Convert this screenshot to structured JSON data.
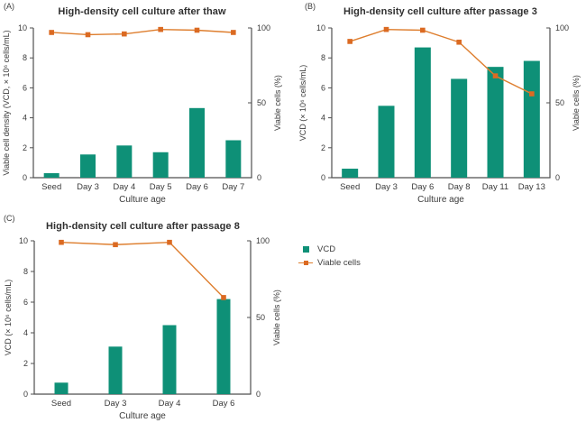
{
  "figure": {
    "colors": {
      "bar": "#0e9077",
      "line": "#de7e2e",
      "marker": "#db6a22",
      "axis": "#4f4f4f",
      "text": "#3a3a3a"
    },
    "legend": {
      "items": [
        {
          "label": "VCD",
          "type": "bar",
          "color": "#0e9077"
        },
        {
          "label": "Viable cells",
          "type": "line",
          "color": "#db6a22",
          "line_color": "#de7e2e"
        }
      ]
    }
  },
  "chart_data": [
    {
      "panel_label": "(A)",
      "type": "bar+line",
      "title": "High-density cell culture after thaw",
      "categories": [
        "Seed",
        "Day 3",
        "Day 4",
        "Day 5",
        "Day 6",
        "Day 7"
      ],
      "series": [
        {
          "name": "VCD",
          "type": "bar",
          "axis": "left",
          "values": [
            0.3,
            1.55,
            2.15,
            1.7,
            4.65,
            2.5
          ]
        },
        {
          "name": "Viable cells",
          "type": "line",
          "axis": "right",
          "values": [
            97,
            95.5,
            96,
            99,
            98.5,
            97
          ]
        }
      ],
      "xlabel": "Culture age",
      "ylabel_left": "Viable cell density (VCD, × 10⁶ cells/mL)",
      "ylabel_right": "Viable cells (%)",
      "ylim_left": [
        0,
        10
      ],
      "ylim_right": [
        0,
        100
      ],
      "yticks_left": [
        0,
        2,
        4,
        6,
        8,
        10
      ],
      "yticks_right": [
        0,
        50,
        100
      ]
    },
    {
      "panel_label": "(B)",
      "type": "bar+line",
      "title": "High-density cell culture after passage 3",
      "categories": [
        "Seed",
        "Day 3",
        "Day 6",
        "Day 8",
        "Day 11",
        "Day 13"
      ],
      "series": [
        {
          "name": "VCD",
          "type": "bar",
          "axis": "left",
          "values": [
            0.6,
            4.8,
            8.7,
            6.6,
            7.4,
            7.8
          ]
        },
        {
          "name": "Viable cells",
          "type": "line",
          "axis": "right",
          "values": [
            91,
            99,
            98.5,
            90.5,
            68,
            56
          ]
        }
      ],
      "xlabel": "Culture age",
      "ylabel_left": "VCD (× 10⁶ cells/mL)",
      "ylabel_right": "Viable cells (%)",
      "ylim_left": [
        0,
        10
      ],
      "ylim_right": [
        0,
        100
      ],
      "yticks_left": [
        0,
        2,
        4,
        6,
        8,
        10
      ],
      "yticks_right": [
        0,
        50,
        100
      ]
    },
    {
      "panel_label": "(C)",
      "type": "bar+line",
      "title": "High-density cell culture after passage 8",
      "categories": [
        "Seed",
        "Day 3",
        "Day 4",
        "Day 6"
      ],
      "series": [
        {
          "name": "VCD",
          "type": "bar",
          "axis": "left",
          "values": [
            0.75,
            3.1,
            4.5,
            6.2
          ]
        },
        {
          "name": "Viable cells",
          "type": "line",
          "axis": "right",
          "values": [
            99,
            97.5,
            99,
            63
          ]
        }
      ],
      "xlabel": "Culture age",
      "ylabel_left": "VCD (× 10⁶ cells/mL)",
      "ylabel_right": "Viable cells (%)",
      "ylim_left": [
        0,
        10
      ],
      "ylim_right": [
        0,
        100
      ],
      "yticks_left": [
        0,
        2,
        4,
        6,
        8,
        10
      ],
      "yticks_right": [
        0,
        50,
        100
      ]
    }
  ]
}
